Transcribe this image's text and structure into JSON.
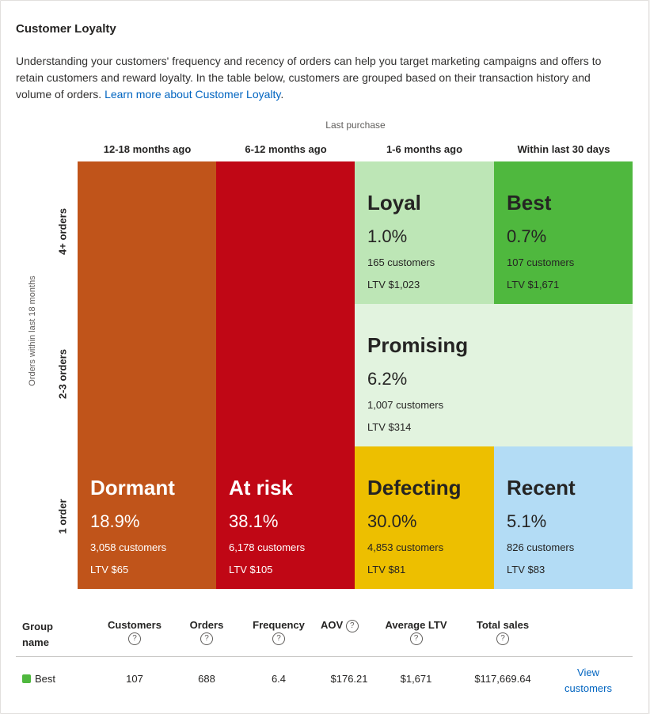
{
  "card": {
    "title": "Customer Loyalty",
    "description": "Understanding your customers' frequency and recency of orders can help you target marketing campaigns and offers to retain customers and reward loyalty. In the table below, customers are grouped based on their transaction history and volume of orders.",
    "learn_more": "Learn more about Customer Loyalty"
  },
  "matrix": {
    "x_title": "Last purchase",
    "y_title": "Orders within last 18 months",
    "columns": [
      "12-18 months ago",
      "6-12 months ago",
      "1-6 months ago",
      "Within last 30 days"
    ],
    "rows": [
      "4+ orders",
      "2-3 orders",
      "1 order"
    ],
    "segments": {
      "dormant": {
        "name": "Dormant",
        "percent": "18.9%",
        "customers": "3,058 customers",
        "ltv": "LTV $65",
        "color": "#c0541a"
      },
      "at_risk": {
        "name": "At risk",
        "percent": "38.1%",
        "customers": "6,178 customers",
        "ltv": "LTV $105",
        "color": "#c00715"
      },
      "loyal": {
        "name": "Loyal",
        "percent": "1.0%",
        "customers": "165 customers",
        "ltv": "LTV $1,023",
        "color": "#bde6b6"
      },
      "best": {
        "name": "Best",
        "percent": "0.7%",
        "customers": "107 customers",
        "ltv": "LTV $1,671",
        "color": "#4fb83e"
      },
      "promising": {
        "name": "Promising",
        "percent": "6.2%",
        "customers": "1,007 customers",
        "ltv": "LTV $314",
        "color": "#e2f3df"
      },
      "defecting": {
        "name": "Defecting",
        "percent": "30.0%",
        "customers": "4,853 customers",
        "ltv": "LTV $81",
        "color": "#edbf00"
      },
      "recent": {
        "name": "Recent",
        "percent": "5.1%",
        "customers": "826 customers",
        "ltv": "LTV $83",
        "color": "#b3dcf5"
      }
    }
  },
  "table": {
    "headers": {
      "group_name": "Group name",
      "customers": "Customers",
      "orders": "Orders",
      "frequency": "Frequency",
      "aov": "AOV",
      "average_ltv": "Average LTV",
      "total_sales": "Total sales"
    },
    "help_glyph": "?",
    "rows": [
      {
        "group": "Best",
        "swatch_color": "#4fb83e",
        "customers": "107",
        "orders": "688",
        "frequency": "6.4",
        "aov": "$176.21",
        "average_ltv": "$1,671",
        "total_sales": "$117,669.64",
        "action": "View customers"
      }
    ]
  }
}
